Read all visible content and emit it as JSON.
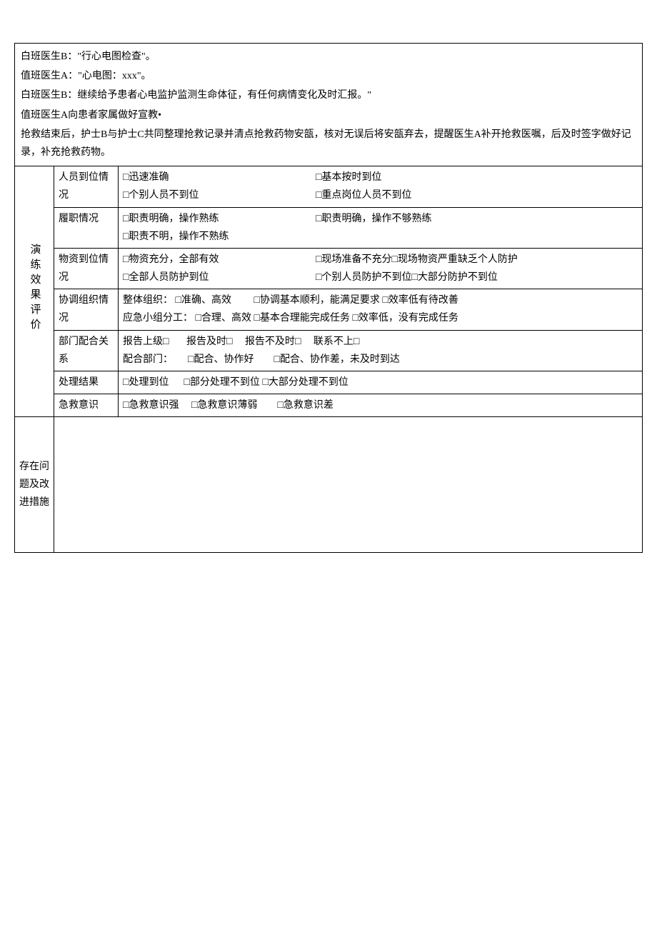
{
  "narrative": {
    "line1": "白班医生B：\"行心电图检查\"。",
    "line2": "值班医生A：\"心电图：xxx\"。",
    "line3": "白班医生B：继续给予患者心电监护监测生命体征，有任何病情变化及时汇报。\"",
    "line4": "值班医生A向患者家属做好宣教•",
    "line5": "抢救结束后，护士B与护士C共同整理抢救记录并清点抢救药物安瓿，核对无误后将安瓿弃去，提醒医生A补开抢救医嘱，后及时签字做好记录，补充抢救药物。"
  },
  "eval_header": "演练效果评价",
  "rows": {
    "r1": {
      "label": "人员到位情况",
      "o1": "迅速准确",
      "o2": "基本按时到位",
      "o3": "个别人员不到位",
      "o4": "重点岗位人员不到位"
    },
    "r2": {
      "label": "履职情况",
      "o1": "职责明确，操作熟练",
      "o2": "职责明确，操作不够熟练",
      "o3": "职责不明，操作不熟练"
    },
    "r3": {
      "label": "物资到位情况",
      "o1": "物资充分，全部有效",
      "o2": "现场准备不充分",
      "o3": "现场物资严重缺乏个人防护",
      "o4": "全部人员防护到位",
      "o5": "个别人员防护不到位",
      "o6": "大部分防护不到位"
    },
    "r4": {
      "label": "协调组织情况",
      "l1": "整体组织：",
      "o1": "准确、高效",
      "o2": "协调基本顺利，能满足要求",
      "o3": "效率低有待改善",
      "l2": "应急小组分工：",
      "o4": "合理、高效",
      "o5": "基本合理能完成任务",
      "o6": "效率低，没有完成任务"
    },
    "r5": {
      "label": "部门配合关系",
      "l1": "报告上级",
      "l2": "报告及时",
      "l3": "报告不及时",
      "l4": "联系不上",
      "l5": "配合部门：",
      "o1": "配合、协作好",
      "o2": "配合、协作差，未及时到达"
    },
    "r6": {
      "label": "处理结果",
      "o1": "处理到位",
      "o2": "部分处理不到位",
      "o3": "大部分处理不到位"
    },
    "r7": {
      "label": "急救意识",
      "o1": "急救意识强",
      "o2": "急救意识薄弱",
      "o3": "急救意识差"
    }
  },
  "issues_label": "存在问题及改进措施"
}
